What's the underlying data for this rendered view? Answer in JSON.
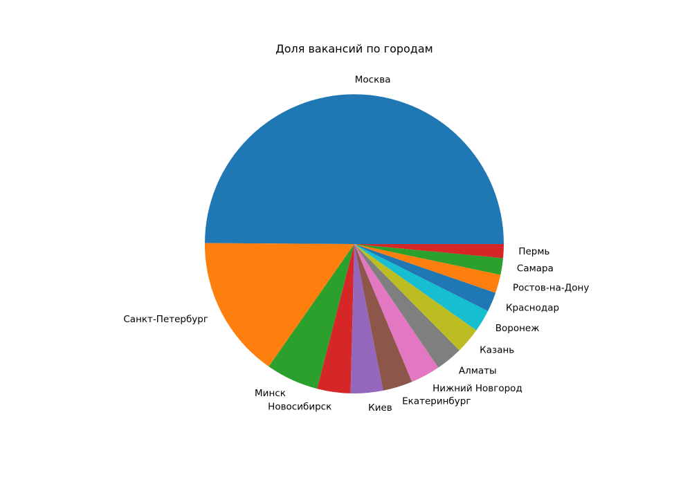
{
  "chart_data": {
    "type": "pie",
    "title": "Доля вакансий по городам",
    "start_angle_deg": 0,
    "direction": "counterclockwise",
    "labels": [
      "Москва",
      "Санкт-Петербург",
      "Минск",
      "Новосибирск",
      "Киев",
      "Екатеринбург",
      "Нижний Новгород",
      "Алматы",
      "Казань",
      "Воронеж",
      "Краснодар",
      "Ростов-на-Дону",
      "Самара",
      "Пермь"
    ],
    "values": [
      49.9,
      15.4,
      5.7,
      3.6,
      3.5,
      3.2,
      3.2,
      2.9,
      2.8,
      2.4,
      2.1,
      2.0,
      1.8,
      1.5
    ],
    "colors": [
      "#1f77b4",
      "#ff7f0e",
      "#2ca02c",
      "#d62728",
      "#9467bd",
      "#8c564b",
      "#e377c2",
      "#7f7f7f",
      "#bcbd22",
      "#17becf",
      "#1f77b4",
      "#ff7f0e",
      "#2ca02c",
      "#d62728"
    ]
  }
}
